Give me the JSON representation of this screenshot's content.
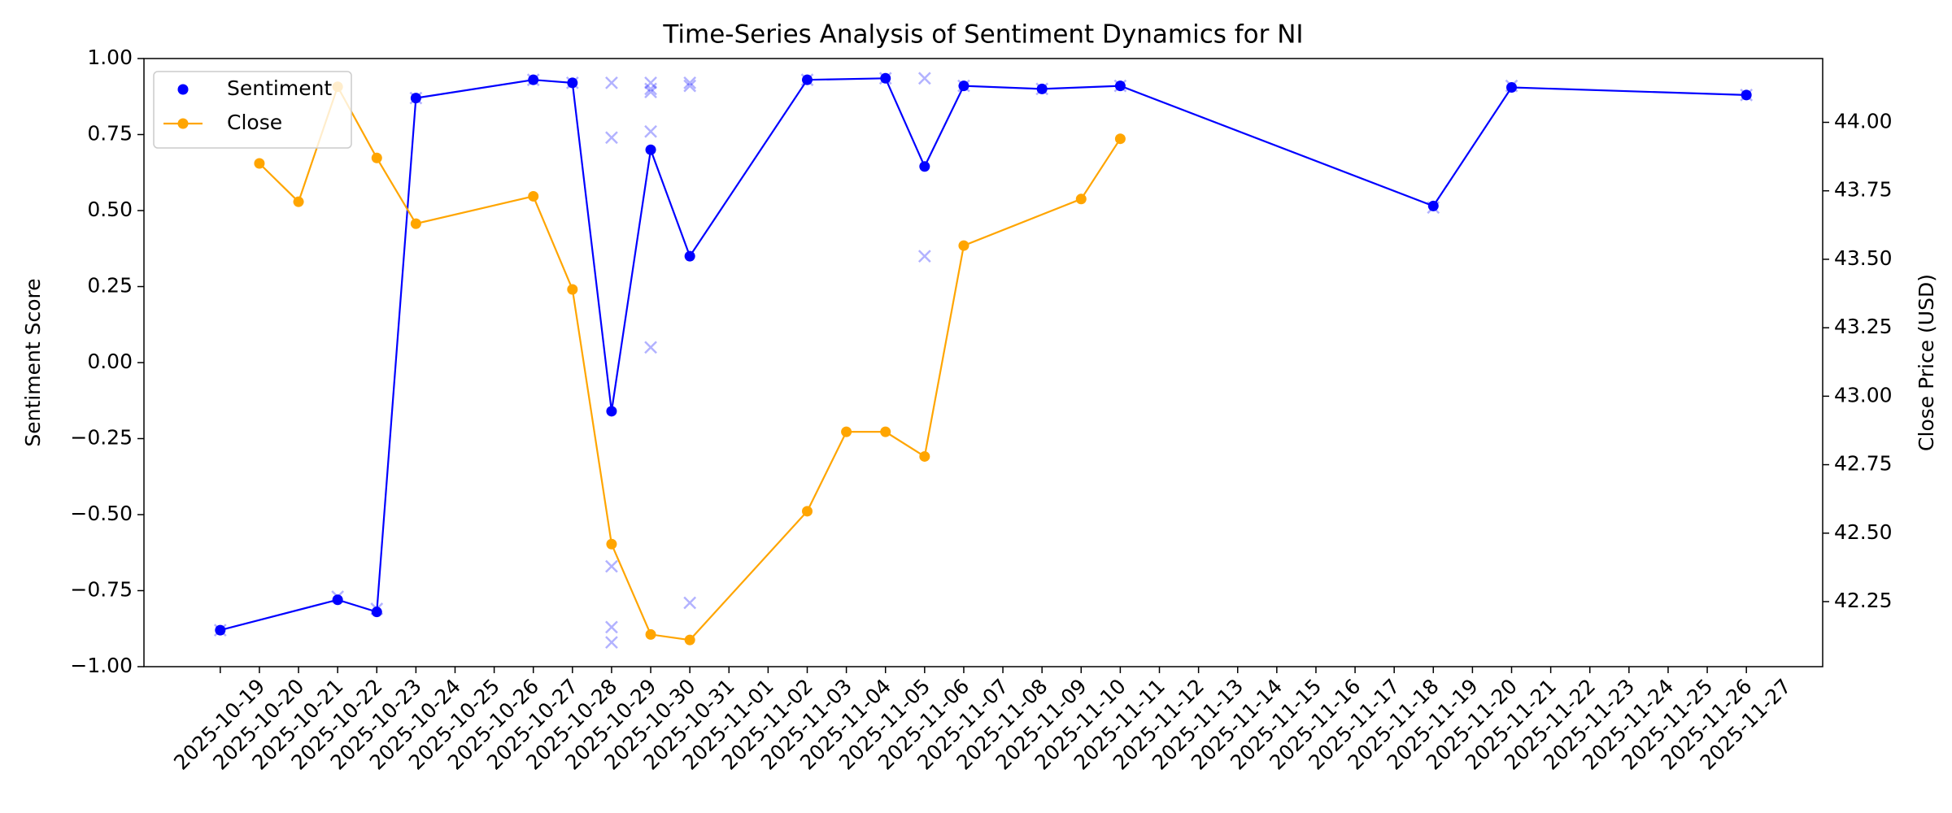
{
  "chart_data": {
    "type": "line",
    "title": "Time-Series Analysis of Sentiment Dynamics for NI",
    "ylabel": "Sentiment Score",
    "y2label": "Close Price (USD)",
    "legend": "upper left",
    "xticks": [
      "2025-10-19",
      "2025-10-20",
      "2025-10-21",
      "2025-10-22",
      "2025-10-23",
      "2025-10-24",
      "2025-10-25",
      "2025-10-26",
      "2025-10-27",
      "2025-10-28",
      "2025-10-29",
      "2025-10-30",
      "2025-10-31",
      "2025-11-01",
      "2025-11-02",
      "2025-11-03",
      "2025-11-04",
      "2025-11-05",
      "2025-11-06",
      "2025-11-07",
      "2025-11-08",
      "2025-11-09",
      "2025-11-10",
      "2025-11-11",
      "2025-11-12",
      "2025-11-13",
      "2025-11-14",
      "2025-11-15",
      "2025-11-16",
      "2025-11-17",
      "2025-11-18",
      "2025-11-19",
      "2025-11-20",
      "2025-11-21",
      "2025-11-22",
      "2025-11-23",
      "2025-11-24",
      "2025-11-25",
      "2025-11-26",
      "2025-11-27"
    ],
    "ylim": [
      -1,
      1
    ],
    "yticks": [
      {
        "value": 1,
        "label": "1.00"
      },
      {
        "value": 0.75,
        "label": "0.75"
      },
      {
        "value": 0.5,
        "label": "0.50"
      },
      {
        "value": 0.25,
        "label": "0.25"
      },
      {
        "value": 0,
        "label": "0.00"
      },
      {
        "value": -0.25,
        "label": "−0.25"
      },
      {
        "value": -0.5,
        "label": "−0.50"
      },
      {
        "value": -0.75,
        "label": "−0.75"
      },
      {
        "value": -1,
        "label": "−1.00"
      }
    ],
    "y2lim": [
      42.0125,
      44.233
    ],
    "y2ticks": [
      {
        "value": 42.25,
        "label": "42.25"
      },
      {
        "value": 42.5,
        "label": "42.50"
      },
      {
        "value": 42.75,
        "label": "42.75"
      },
      {
        "value": 43,
        "label": "43.00"
      },
      {
        "value": 43.25,
        "label": "43.25"
      },
      {
        "value": 43.5,
        "label": "43.50"
      },
      {
        "value": 43.75,
        "label": "43.75"
      },
      {
        "value": 44,
        "label": "44.00"
      }
    ],
    "series": [
      {
        "name": "Sentiment",
        "color": "#0000ff",
        "axis": "y",
        "x": [
          "2025-10-19",
          "2025-10-22",
          "2025-10-23",
          "2025-10-24",
          "2025-10-27",
          "2025-10-28",
          "2025-10-29",
          "2025-10-30",
          "2025-10-31",
          "2025-11-03",
          "2025-11-05",
          "2025-11-06",
          "2025-11-07",
          "2025-11-09",
          "2025-11-11",
          "2025-11-19",
          "2025-11-21",
          "2025-11-27"
        ],
        "values": [
          -0.88,
          -0.78,
          -0.82,
          0.87,
          0.93,
          0.92,
          -0.16,
          0.7,
          0.35,
          0.93,
          0.935,
          0.645,
          0.91,
          0.9,
          0.91,
          0.515,
          0.905,
          0.88
        ]
      },
      {
        "name": "Close",
        "color": "#ffa500",
        "axis": "y2",
        "x": [
          "2025-10-20",
          "2025-10-21",
          "2025-10-22",
          "2025-10-23",
          "2025-10-24",
          "2025-10-27",
          "2025-10-28",
          "2025-10-29",
          "2025-10-30",
          "2025-10-31",
          "2025-11-03",
          "2025-11-04",
          "2025-11-05",
          "2025-11-06",
          "2025-11-07",
          "2025-11-10",
          "2025-11-11"
        ],
        "values": [
          43.85,
          43.71,
          44.13,
          43.87,
          43.63,
          43.73,
          43.39,
          42.46,
          42.13,
          42.11,
          42.58,
          42.87,
          42.87,
          42.78,
          43.55,
          43.72,
          43.94
        ]
      }
    ],
    "raw_points": {
      "color": "#0000ff",
      "opacity": 0.3,
      "x": [
        "2025-10-19",
        "2025-10-22",
        "2025-10-23",
        "2025-10-24",
        "2025-10-27",
        "2025-10-28",
        "2025-10-29",
        "2025-10-29",
        "2025-10-29",
        "2025-10-29",
        "2025-10-29",
        "2025-10-30",
        "2025-10-30",
        "2025-10-30",
        "2025-10-30",
        "2025-10-30",
        "2025-10-31",
        "2025-10-31",
        "2025-10-31",
        "2025-11-03",
        "2025-11-05",
        "2025-11-06",
        "2025-11-06",
        "2025-11-07",
        "2025-11-09",
        "2025-11-11",
        "2025-11-19",
        "2025-11-21",
        "2025-11-27"
      ],
      "values": [
        -0.88,
        -0.77,
        -0.81,
        0.87,
        0.93,
        0.92,
        0.92,
        0.74,
        -0.67,
        -0.87,
        -0.92,
        0.92,
        0.9,
        0.89,
        0.76,
        0.05,
        0.92,
        0.91,
        -0.79,
        0.93,
        0.935,
        0.935,
        0.35,
        0.91,
        0.9,
        0.91,
        0.51,
        0.91,
        0.88
      ]
    }
  }
}
